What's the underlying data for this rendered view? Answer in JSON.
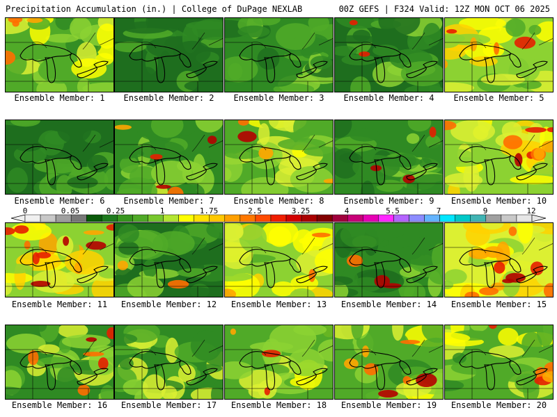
{
  "header": {
    "title_left": "Precipitation Accumulation (in.) | College of DuPage NEXLAB",
    "title_right": "00Z GEFS | F324 Valid: 12Z MON OCT 06 2025"
  },
  "panels": [
    {
      "label": "Ensemble Member: 1",
      "level": 0.45,
      "hot": 0.12
    },
    {
      "label": "Ensemble Member: 2",
      "level": 0.22,
      "hot": 0.0
    },
    {
      "label": "Ensemble Member: 3",
      "level": 0.3,
      "hot": 0.0
    },
    {
      "label": "Ensemble Member: 4",
      "level": 0.28,
      "hot": 0.05
    },
    {
      "label": "Ensemble Member: 5",
      "level": 0.52,
      "hot": 0.18
    },
    {
      "label": "Ensemble Member: 6",
      "level": 0.22,
      "hot": 0.0
    },
    {
      "label": "Ensemble Member: 7",
      "level": 0.36,
      "hot": 0.15
    },
    {
      "label": "Ensemble Member: 8",
      "level": 0.48,
      "hot": 0.12
    },
    {
      "label": "Ensemble Member: 9",
      "level": 0.3,
      "hot": 0.1
    },
    {
      "label": "Ensemble Member: 10",
      "level": 0.55,
      "hot": 0.3
    },
    {
      "label": "Ensemble Member: 11",
      "level": 0.58,
      "hot": 0.38
    },
    {
      "label": "Ensemble Member: 12",
      "level": 0.28,
      "hot": 0.06
    },
    {
      "label": "Ensemble Member: 13",
      "level": 0.55,
      "hot": 0.1
    },
    {
      "label": "Ensemble Member: 14",
      "level": 0.3,
      "hot": 0.1
    },
    {
      "label": "Ensemble Member: 15",
      "level": 0.62,
      "hot": 0.35
    },
    {
      "label": "Ensemble Member: 16",
      "level": 0.4,
      "hot": 0.2
    },
    {
      "label": "Ensemble Member: 17",
      "level": 0.4,
      "hot": 0.0
    },
    {
      "label": "Ensemble Member: 18",
      "level": 0.5,
      "hot": 0.1
    },
    {
      "label": "Ensemble Member: 19",
      "level": 0.45,
      "hot": 0.22
    },
    {
      "label": "Ensemble Member: 20",
      "level": 0.45,
      "hot": 0.18
    }
  ],
  "colorbar": {
    "labels": [
      "0",
      "0.05",
      "0.25",
      "1",
      "1.75",
      "2.5",
      "3.25",
      "4",
      "5.5",
      "7",
      "9",
      "12"
    ],
    "colors": [
      "#f0f0f0",
      "#c8c8c8",
      "#a0a0a0",
      "#787878",
      "#0a5a0a",
      "#1e7a1e",
      "#37961e",
      "#50aa28",
      "#78c82d",
      "#b4e632",
      "#ffff00",
      "#ffe100",
      "#ffc800",
      "#ffa000",
      "#ff7800",
      "#ff4b00",
      "#f01e00",
      "#d20000",
      "#aa0000",
      "#820000",
      "#a0003c",
      "#c80078",
      "#e600b4",
      "#ff28ff",
      "#b464ff",
      "#8c8cff",
      "#64b4ff",
      "#00e6ff",
      "#00c8c8",
      "#40b4b4",
      "#a0a0a0",
      "#c8c8c8",
      "#e6e6e6"
    ]
  }
}
